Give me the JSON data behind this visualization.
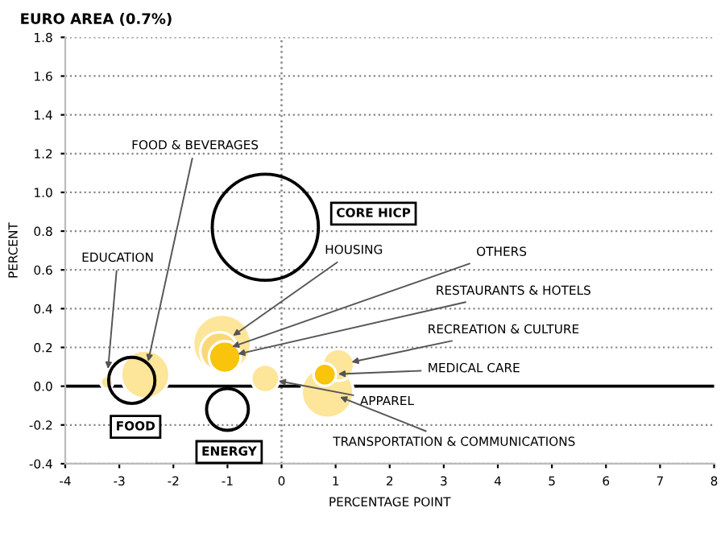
{
  "chart_data": {
    "type": "bubble",
    "title": "EURO AREA (0.7%)",
    "xlabel": "PERCENTAGE POINT",
    "ylabel": "PERCENT",
    "xlim": [
      -4,
      8
    ],
    "xticks": [
      -4,
      -3,
      -2,
      -1,
      0,
      1,
      2,
      3,
      4,
      5,
      6,
      7,
      8
    ],
    "ylim": [
      -0.4,
      1.8
    ],
    "yticks": [
      -0.4,
      -0.2,
      {
        "value": 0,
        "label": "0.0"
      },
      0.2,
      0.4,
      0.6,
      0.8,
      {
        "value": 1,
        "label": "1.0"
      },
      1.2,
      1.4,
      1.6,
      1.8
    ],
    "grid": "y",
    "ref_lines": [
      {
        "axis": "x",
        "value": 0,
        "line_style": "dotted",
        "color": "#888888"
      },
      {
        "axis": "y",
        "value": 0,
        "line_style": "solid",
        "color": "#000000"
      }
    ],
    "series": [
      {
        "name": "EDUCATION",
        "color": "#fde59a",
        "x": [
          -3.23
        ],
        "values": [
          0.02
        ],
        "sizes": [
          0.015
        ]
      },
      {
        "name": "FOOD & BEVERAGES",
        "color": "#fde59a",
        "x": [
          -2.52
        ],
        "values": [
          0.06
        ],
        "sizes": [
          0.21
        ]
      },
      {
        "name": "HOUSING",
        "color": "#fde59a",
        "x": [
          -1.1
        ],
        "values": [
          0.22
        ],
        "sizes": [
          0.3
        ]
      },
      {
        "name": "OTHERS",
        "color": "#fbd877",
        "x": [
          -1.15
        ],
        "values": [
          0.18
        ],
        "sizes": [
          0.13
        ]
      },
      {
        "name": "RESTAURANTS & HOTELS",
        "color": "#f8c40c",
        "x": [
          -1.05
        ],
        "values": [
          0.15
        ],
        "sizes": [
          0.09
        ]
      },
      {
        "name": "APPAREL",
        "color": "#fde59a",
        "x": [
          -0.3
        ],
        "values": [
          0.04
        ],
        "sizes": [
          0.07
        ]
      },
      {
        "name": "TRANSPORTATION & COMMUNICATIONS",
        "color": "#fde59a",
        "x": [
          0.85
        ],
        "values": [
          -0.03
        ],
        "sizes": [
          0.24
        ]
      },
      {
        "name": "RECREATION & CULTURE",
        "color": "#fde59a",
        "x": [
          1.05
        ],
        "values": [
          0.11
        ],
        "sizes": [
          0.09
        ]
      },
      {
        "name": "MEDICAL CARE",
        "color": "#f8c40c",
        "x": [
          0.8
        ],
        "values": [
          0.06
        ],
        "sizes": [
          0.045
        ]
      },
      {
        "name": "CORE HICP",
        "color": "#000000",
        "x": [
          -0.3
        ],
        "values": [
          0.82
        ],
        "sizes": [
          1
        ]
      },
      {
        "name": "FOOD",
        "color": "#000000",
        "x": [
          -2.77
        ],
        "values": [
          0.03
        ],
        "sizes": [
          0.19
        ]
      },
      {
        "name": "ENERGY",
        "color": "#000000",
        "x": [
          -1.0
        ],
        "values": [
          -0.12
        ],
        "sizes": [
          0.155
        ]
      }
    ]
  }
}
